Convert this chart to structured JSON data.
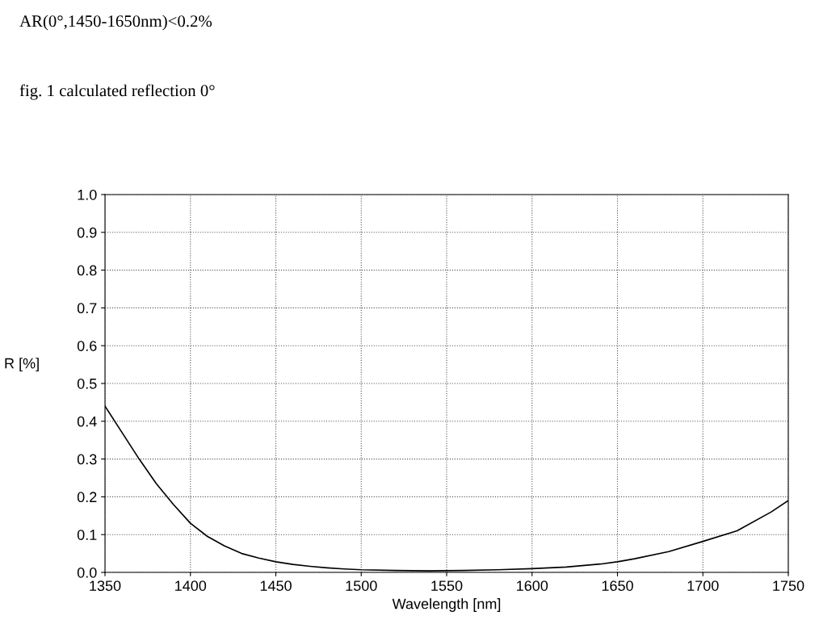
{
  "chart_data": {
    "type": "line",
    "title": "AR(0°,1450-1650nm)<0.2%",
    "subtitle": "fig. 1 calculated reflection 0°",
    "xlabel": "Wavelength [nm]",
    "ylabel": "R [%]",
    "x": [
      1350,
      1360,
      1370,
      1380,
      1390,
      1400,
      1410,
      1420,
      1430,
      1440,
      1450,
      1460,
      1470,
      1480,
      1490,
      1500,
      1520,
      1540,
      1560,
      1580,
      1600,
      1620,
      1640,
      1650,
      1660,
      1680,
      1700,
      1720,
      1740,
      1750
    ],
    "series": [
      {
        "color": "#000000",
        "values": [
          0.44,
          0.37,
          0.3,
          0.235,
          0.18,
          0.13,
          0.095,
          0.07,
          0.05,
          0.038,
          0.028,
          0.021,
          0.016,
          0.012,
          0.009,
          0.007,
          0.005,
          0.004,
          0.005,
          0.007,
          0.01,
          0.014,
          0.022,
          0.028,
          0.036,
          0.055,
          0.082,
          0.11,
          0.16,
          0.19
        ]
      }
    ],
    "xlim": [
      1350,
      1750
    ],
    "xticks": [
      1350,
      1400,
      1450,
      1500,
      1550,
      1600,
      1650,
      1700,
      1750
    ],
    "ylim": [
      0,
      1
    ],
    "yticks": [
      {
        "value": 0,
        "label": "0.0"
      },
      {
        "value": 0.1,
        "label": "0.1"
      },
      {
        "value": 0.2,
        "label": "0.2"
      },
      {
        "value": 0.3,
        "label": "0.3"
      },
      {
        "value": 0.4,
        "label": "0.4"
      },
      {
        "value": 0.5,
        "label": "0.5"
      },
      {
        "value": 0.6,
        "label": "0.6"
      },
      {
        "value": 0.7,
        "label": "0.7"
      },
      {
        "value": 0.8,
        "label": "0.8"
      },
      {
        "value": 0.9,
        "label": "0.9"
      },
      {
        "value": 1,
        "label": "1.0"
      }
    ],
    "grid": true,
    "line_style": "solid",
    "marker": "none"
  }
}
